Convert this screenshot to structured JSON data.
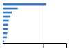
{
  "chart_data": {
    "type": "bar",
    "orientation": "horizontal",
    "categories": [
      null,
      null,
      null,
      null,
      null,
      null,
      null,
      null,
      null,
      null
    ],
    "values": [
      580,
      200,
      120,
      100,
      80,
      70,
      65,
      60,
      55,
      18
    ],
    "color": "#3a7abf",
    "xlim": [
      0,
      850
    ],
    "xticks": [
      539.75
    ],
    "grid": true,
    "tick_labels": false
  }
}
